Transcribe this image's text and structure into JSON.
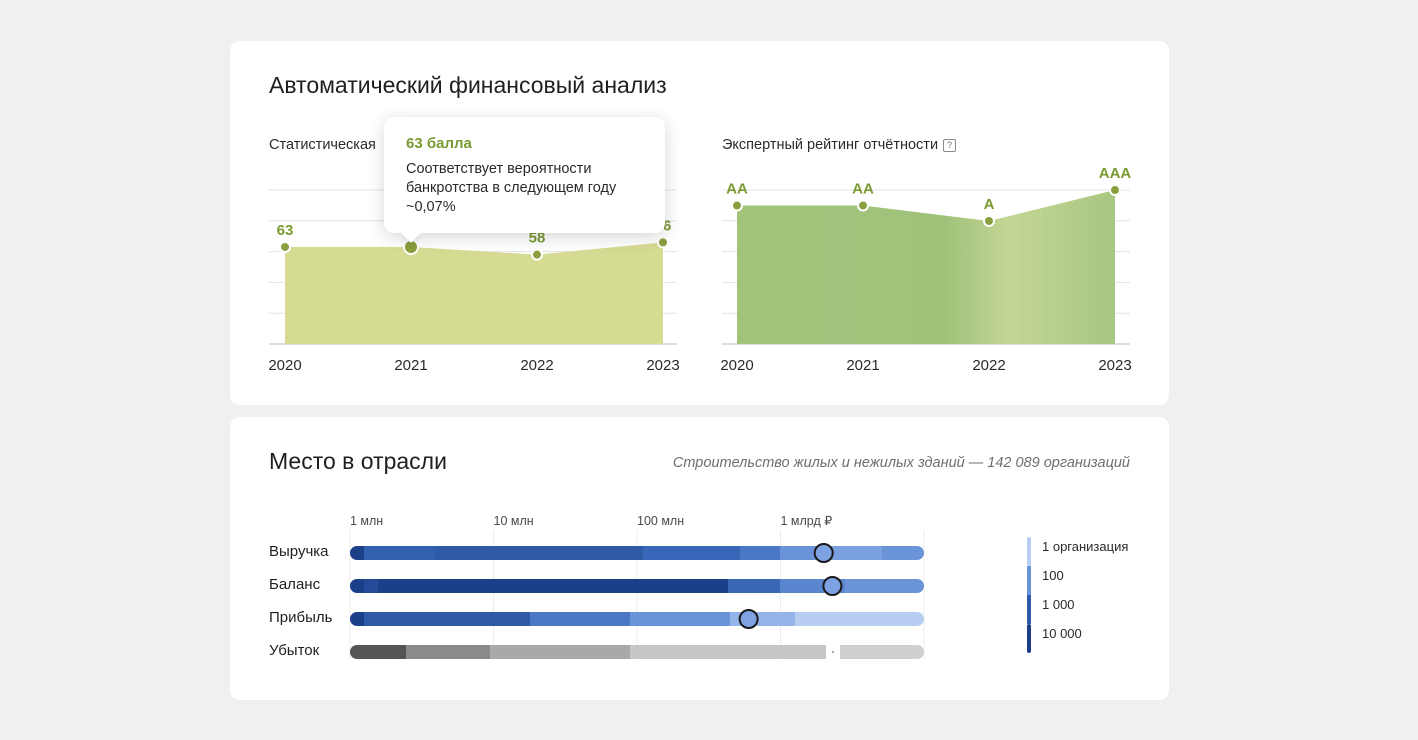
{
  "finance": {
    "title": "Автоматический финансовый анализ",
    "statistical_label": "Статистическая",
    "expert_label": "Экспертный рейтинг отчётности",
    "help_icon_text": "?",
    "tooltip": {
      "title": "63 балла",
      "text": "Соответствует вероятности банкротства в следующем году ~0,07%"
    }
  },
  "industry": {
    "title": "Место в отрасли",
    "subtitle": "Строительство жилых и нежилых зданий — 142 089 организаций",
    "rows": [
      "Выручка",
      "Баланс",
      "Прибыль",
      "Убыток"
    ],
    "legend": [
      "1 организация",
      "100",
      "1 000",
      "10 000"
    ]
  },
  "colors": {
    "stat_fill": "#d6db93",
    "stat_dot": "#8aa03e",
    "rating_fill": "#a6c67e",
    "label_green": "#7a9a32",
    "bar_dark": "#1c3f8a",
    "bar_mid": "#2f5aa8",
    "bar_light": "#6b93d8",
    "bar_pale": "#b7cdf1"
  },
  "chart_data": [
    {
      "type": "area",
      "x": [
        "2020",
        "2021",
        "2022",
        "2023"
      ],
      "values": [
        63,
        63,
        58,
        66
      ],
      "data_labels": [
        "63",
        "",
        "58",
        "66"
      ],
      "highlight_index": 1,
      "ylim": [
        0,
        100
      ]
    },
    {
      "type": "area",
      "x": [
        "2020",
        "2021",
        "2022",
        "2023"
      ],
      "values": [
        "AA",
        "AA",
        "A",
        "AAA"
      ],
      "scale_levels": [
        "BBB",
        "A",
        "AA",
        "AAA"
      ]
    },
    {
      "type": "bar",
      "scale": "log",
      "ticks": [
        "1 млн",
        "10 млн",
        "100 млн",
        "1 млрд ₽"
      ],
      "tick_values": [
        1000000,
        10000000,
        100000000,
        1000000000
      ],
      "markers": {
        "Выручка": 2000000000,
        "Баланс": 2300000000,
        "Прибыль": 600000000
      }
    }
  ]
}
